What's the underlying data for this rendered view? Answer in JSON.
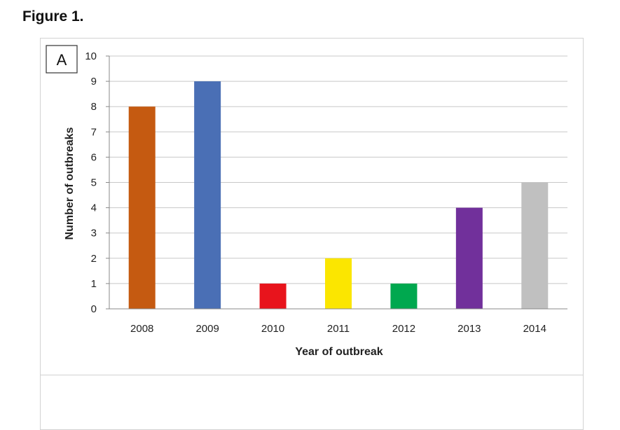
{
  "figure_title": "Figure 1.",
  "chart_data": {
    "type": "bar",
    "panel_label": "A",
    "title": "",
    "xlabel": "Year of outbreak",
    "ylabel": "Number of outbreaks",
    "categories": [
      "2008",
      "2009",
      "2010",
      "2011",
      "2012",
      "2013",
      "2014"
    ],
    "values": [
      8,
      9,
      1,
      2,
      1,
      4,
      5
    ],
    "colors": [
      "#c55a11",
      "#4a6fb5",
      "#e8141c",
      "#fbe600",
      "#00a84f",
      "#71309b",
      "#c0c0c0"
    ],
    "ylim": [
      0,
      10
    ],
    "yticks": [
      "0",
      "1",
      "2",
      "3",
      "4",
      "5",
      "6",
      "7",
      "8",
      "9",
      "10"
    ],
    "grid": true,
    "legend": "none"
  }
}
